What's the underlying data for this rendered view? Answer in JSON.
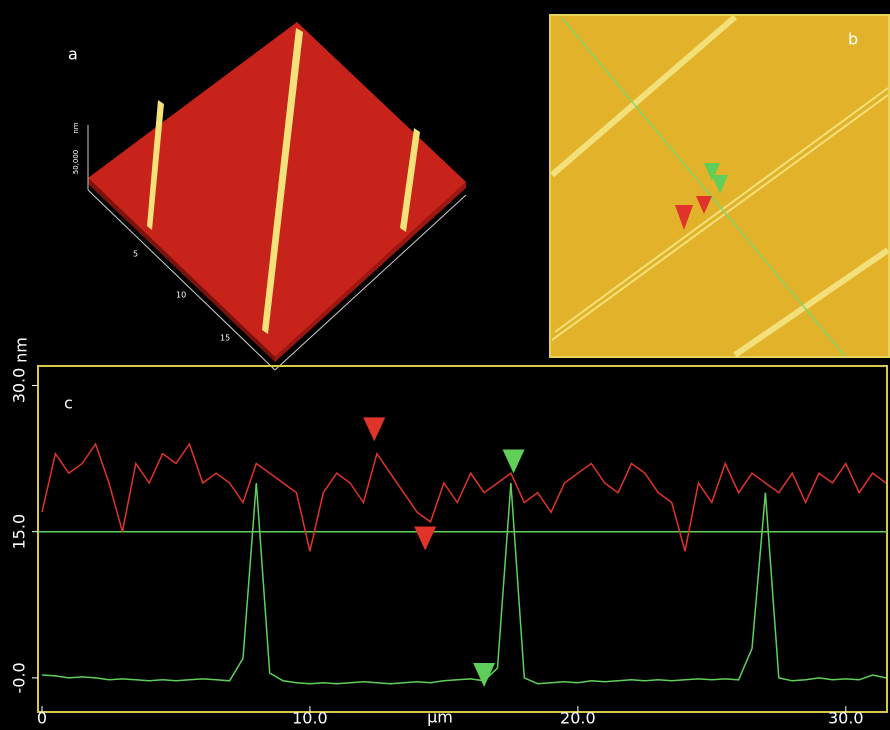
{
  "panels": {
    "a": {
      "label": "a",
      "z_scale": "50,000",
      "z_unit": "nm",
      "axis_ticks": [
        "5",
        "10",
        "15"
      ]
    },
    "b": {
      "label": "b"
    }
  },
  "chart_data": {
    "type": "line",
    "panel_label": "c",
    "x_label": "µm",
    "y_label": "nm",
    "x": [
      0,
      0.5,
      1,
      1.5,
      2,
      2.5,
      3,
      3.5,
      4,
      4.5,
      5,
      5.5,
      6,
      6.5,
      7,
      7.5,
      8,
      8.5,
      9,
      9.5,
      10,
      10.5,
      11,
      11.5,
      12,
      12.5,
      13,
      13.5,
      14,
      14.5,
      15,
      15.5,
      16,
      16.5,
      17,
      17.5,
      18,
      18.5,
      19,
      19.5,
      20,
      20.5,
      21,
      21.5,
      22,
      22.5,
      23,
      23.5,
      24,
      24.5,
      25,
      25.5,
      26,
      26.5,
      27,
      27.5,
      28,
      28.5,
      29,
      29.5,
      30,
      30.5,
      31,
      31.5
    ],
    "series": [
      {
        "color": "#e0342a",
        "values": [
          17,
          23,
          21,
          22,
          24,
          20,
          15,
          22,
          20,
          23,
          22,
          24,
          20,
          21,
          20,
          18,
          22,
          21,
          20,
          19,
          13,
          19,
          21,
          20,
          18,
          23,
          21,
          19,
          17,
          16,
          20,
          18,
          21,
          19,
          20,
          21,
          18,
          19,
          17,
          20,
          21,
          22,
          20,
          19,
          22,
          21,
          19,
          18,
          13,
          20,
          18,
          22,
          19,
          21,
          20,
          19,
          21,
          18,
          21,
          20,
          22,
          19,
          21,
          20
        ]
      },
      {
        "color": "#5fcf5a",
        "values": [
          0.3,
          0.2,
          0.0,
          0.1,
          0.0,
          -0.2,
          -0.1,
          -0.2,
          -0.3,
          -0.2,
          -0.3,
          -0.2,
          -0.1,
          -0.2,
          -0.3,
          2,
          20,
          0.5,
          -0.3,
          -0.5,
          -0.6,
          -0.5,
          -0.6,
          -0.5,
          -0.4,
          -0.5,
          -0.6,
          -0.5,
          -0.4,
          -0.5,
          -0.3,
          -0.2,
          -0.1,
          -0.3,
          1,
          20,
          0,
          -0.6,
          -0.5,
          -0.4,
          -0.5,
          -0.3,
          -0.4,
          -0.3,
          -0.2,
          -0.3,
          -0.2,
          -0.3,
          -0.2,
          -0.1,
          -0.2,
          -0.1,
          -0.2,
          3,
          19,
          0,
          -0.3,
          -0.2,
          0.0,
          -0.2,
          -0.1,
          -0.2,
          0.3,
          0.0
        ]
      }
    ],
    "cursors": [
      {
        "x": 12.4,
        "y": 25.5,
        "color": "#e0342a"
      },
      {
        "x": 14.3,
        "y": 14.3,
        "color": "#e0342a"
      },
      {
        "x": 16.5,
        "y": 0.3,
        "color": "#5fcf5a"
      },
      {
        "x": 17.6,
        "y": 22.2,
        "color": "#5fcf5a"
      }
    ],
    "reference_line": 15,
    "reference_color": "#5fcf5a",
    "xlim": [
      0,
      31.5
    ],
    "ylim": [
      -3.5,
      32
    ],
    "xticks": [
      0,
      {
        "value": 10,
        "label": "10.0"
      },
      {
        "value": 20,
        "label": "20.0"
      },
      {
        "value": 30,
        "label": "30.0"
      }
    ],
    "yticks": [
      {
        "value": 0,
        "label": "-0.0"
      },
      {
        "value": 15,
        "label": "15.0"
      },
      {
        "value": 30,
        "label": "30.0"
      }
    ]
  }
}
